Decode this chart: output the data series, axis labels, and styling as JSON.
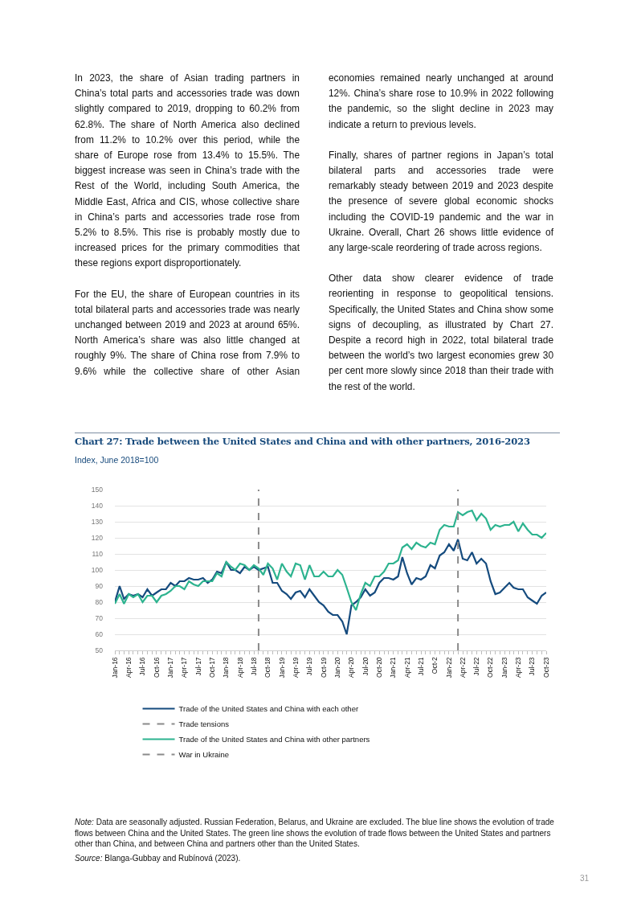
{
  "chart_data": {
    "type": "line",
    "title": "Chart 27: Trade between the United States and China and with other partners, 2016-2023",
    "subtitle": "Index, June 2018=100",
    "annotations": [
      "In 2023, the share of Asian trading partners in China’s total parts and accessories trade was down slightly compared to 2019, dropping to 60.2% from 62.8%. The share of North America also declined from 11.2% to 10.2% over this period, while the share of Europe rose from 13.4% to 15.5%. The biggest increase was seen in China’s trade with the Rest of the World, including South America, the Middle East, Africa and CIS, whose collective share in China’s parts and accessories trade rose from 5.2% to 8.5%. This rise is probably mostly due to increased prices for the primary commodities that these regions export disproportionately.",
      "For the EU, the share of European countries in its total bilateral parts and accessories trade was nearly unchanged between 2019 and 2023 at around 65%. North America’s share was also little changed at roughly 9%. The share of China rose from 7.9% to 9.6% while the collective share of other Asian economies remained nearly unchanged at around 12%. China’s share rose to 10.9% in 2022 following the pandemic, so the slight decline in 2023 may indicate a return to previous levels.",
      "Finally, shares of partner regions in Japan’s total bilateral parts and accessories trade were remarkably steady between 2019 and 2023 despite the presence of severe global economic shocks including the COVID-19 pandemic and the war in Ukraine. Overall, Chart 26 shows little evidence of any large-scale reordering of trade across regions.",
      "Other data show clearer evidence of trade reorienting in response to geopolitical tensions. Specifically, the United States and China show some signs of decoupling, as illustrated by Chart 27. Despite a record high in 2022, total bilateral trade between the world’s two largest economies grew 30 per cent more slowly since 2018 than their trade with the rest of the world.",
      "Note: Data are seasonally adjusted. Russian Federation, Belarus, and Ukraine are excluded. The blue line shows the evolution of trade flows between China and the United States. The green line shows the evolution of trade flows between the United States and partners other than China, and between China and partners other than the United States.",
      "Source: Blanga-Gubbay and Rubínová (2023).",
      "31"
    ],
    "x": [
      "2016-01",
      "2016-02",
      "2016-03",
      "2016-04",
      "2016-05",
      "2016-06",
      "2016-07",
      "2016-08",
      "2016-09",
      "2016-10",
      "2016-11",
      "2016-12",
      "2017-01",
      "2017-02",
      "2017-03",
      "2017-04",
      "2017-05",
      "2017-06",
      "2017-07",
      "2017-08",
      "2017-09",
      "2017-10",
      "2017-11",
      "2017-12",
      "2018-01",
      "2018-02",
      "2018-03",
      "2018-04",
      "2018-05",
      "2018-06",
      "2018-07",
      "2018-08",
      "2018-09",
      "2018-10",
      "2018-11",
      "2018-12",
      "2019-01",
      "2019-02",
      "2019-03",
      "2019-04",
      "2019-05",
      "2019-06",
      "2019-07",
      "2019-08",
      "2019-09",
      "2019-10",
      "2019-11",
      "2019-12",
      "2020-01",
      "2020-02",
      "2020-03",
      "2020-04",
      "2020-05",
      "2020-06",
      "2020-07",
      "2020-08",
      "2020-09",
      "2020-10",
      "2020-11",
      "2020-12",
      "2021-01",
      "2021-02",
      "2021-03",
      "2021-04",
      "2021-05",
      "2021-06",
      "2021-07",
      "2021-08",
      "2021-09",
      "2021-10",
      "2021-11",
      "2021-12",
      "2022-01",
      "2022-02",
      "2022-03",
      "2022-04",
      "2022-05",
      "2022-06",
      "2022-07",
      "2022-08",
      "2022-09",
      "2022-10",
      "2022-11",
      "2022-12",
      "2023-01",
      "2023-02",
      "2023-03",
      "2023-04",
      "2023-05",
      "2023-06",
      "2023-07",
      "2023-08",
      "2023-09",
      "2023-10"
    ],
    "series": [
      {
        "name": "Trade of the United States and China with each other",
        "color": "#154b7e",
        "values": [
          80,
          90,
          82,
          85,
          84,
          85,
          83,
          88,
          84,
          86,
          88,
          88,
          92,
          90,
          93,
          93,
          95,
          94,
          94,
          95,
          92,
          94,
          99,
          98,
          105,
          100,
          100,
          98,
          102,
          100,
          102,
          100,
          101,
          102,
          92,
          92,
          87,
          85,
          82,
          86,
          87,
          83,
          88,
          84,
          80,
          78,
          74,
          72,
          72,
          68,
          60,
          78,
          80,
          83,
          88,
          84,
          86,
          92,
          95,
          95,
          94,
          96,
          108,
          98,
          91,
          95,
          94,
          96,
          103,
          101,
          109,
          111,
          116,
          112,
          119,
          107,
          106,
          111,
          104,
          107,
          104,
          93,
          85,
          86,
          89,
          92,
          89,
          88,
          88,
          83,
          81,
          79,
          84,
          86
        ]
      },
      {
        "name": "Trade of the United States and China with other partners",
        "color": "#2db38f",
        "values": [
          79,
          85,
          79,
          85,
          83,
          85,
          80,
          84,
          84,
          80,
          84,
          85,
          87,
          90,
          90,
          88,
          93,
          91,
          90,
          93,
          93,
          93,
          98,
          96,
          105,
          102,
          100,
          104,
          103,
          100,
          103,
          101,
          97,
          104,
          101,
          94,
          104,
          99,
          96,
          104,
          103,
          94,
          103,
          96,
          96,
          99,
          96,
          96,
          100,
          97,
          89,
          80,
          75,
          85,
          92,
          90,
          96,
          96,
          99,
          104,
          104,
          106,
          114,
          116,
          113,
          117,
          115,
          114,
          117,
          116,
          125,
          128,
          127,
          127,
          136,
          134,
          136,
          137,
          131,
          135,
          132,
          125,
          128,
          127,
          128,
          128,
          130,
          124,
          129,
          125,
          122,
          122,
          120,
          123
        ]
      }
    ],
    "ref_lines": [
      {
        "axis": "x",
        "value": "2018-08",
        "label": "Trade tensions",
        "color": "#8a8a8a",
        "line_style": "dashed"
      },
      {
        "axis": "x",
        "value": "2022-03",
        "label": "War in Ukraine",
        "color": "#8a8a8a",
        "line_style": "dashed"
      }
    ],
    "xlim": [
      "2016-01",
      "2023-10"
    ],
    "xticks": [
      {
        "value": "2016-01",
        "label": "Jan-16"
      },
      {
        "value": "2016-02",
        "label": null
      },
      {
        "value": "2016-03",
        "label": null
      },
      {
        "value": "2016-04",
        "label": "Apr-16"
      },
      {
        "value": "2016-05",
        "label": null
      },
      {
        "value": "2016-06",
        "label": null
      },
      {
        "value": "2016-07",
        "label": "Jul-16"
      },
      {
        "value": "2016-08",
        "label": null
      },
      {
        "value": "2016-09",
        "label": null
      },
      {
        "value": "2016-10",
        "label": "Oct-16"
      },
      {
        "value": "2016-11",
        "label": null
      },
      {
        "value": "2016-12",
        "label": null
      },
      {
        "value": "2017-01",
        "label": "Jan-17"
      },
      {
        "value": "2017-02",
        "label": null
      },
      {
        "value": "2017-03",
        "label": null
      },
      {
        "value": "2017-04",
        "label": "Apr-17"
      },
      {
        "value": "2017-05",
        "label": null
      },
      {
        "value": "2017-06",
        "label": null
      },
      {
        "value": "2017-07",
        "label": "Jul-17"
      },
      {
        "value": "2017-08",
        "label": null
      },
      {
        "value": "2017-09",
        "label": null
      },
      {
        "value": "2017-10",
        "label": "Oct-17"
      },
      {
        "value": "2017-11",
        "label": null
      },
      {
        "value": "2017-12",
        "label": null
      },
      {
        "value": "2018-01",
        "label": "Jan-18"
      },
      {
        "value": "2018-02",
        "label": null
      },
      {
        "value": "2018-03",
        "label": null
      },
      {
        "value": "2018-04",
        "label": "Apr-18"
      },
      {
        "value": "2018-05",
        "label": null
      },
      {
        "value": "2018-06",
        "label": null
      },
      {
        "value": "2018-07",
        "label": "Jul-18"
      },
      {
        "value": "2018-08",
        "label": null
      },
      {
        "value": "2018-09",
        "label": null
      },
      {
        "value": "2018-10",
        "label": "Oct-18"
      },
      {
        "value": "2018-11",
        "label": null
      },
      {
        "value": "2018-12",
        "label": null
      },
      {
        "value": "2019-01",
        "label": "Jan-19"
      },
      {
        "value": "2019-02",
        "label": null
      },
      {
        "value": "2019-03",
        "label": null
      },
      {
        "value": "2019-04",
        "label": "Apr-19"
      },
      {
        "value": "2019-05",
        "label": null
      },
      {
        "value": "2019-06",
        "label": null
      },
      {
        "value": "2019-07",
        "label": "Jul-19"
      },
      {
        "value": "2019-08",
        "label": null
      },
      {
        "value": "2019-09",
        "label": null
      },
      {
        "value": "2019-10",
        "label": "Oct-19"
      },
      {
        "value": "2019-11",
        "label": null
      },
      {
        "value": "2019-12",
        "label": null
      },
      {
        "value": "2020-01",
        "label": "Jan-20"
      },
      {
        "value": "2020-02",
        "label": null
      },
      {
        "value": "2020-03",
        "label": null
      },
      {
        "value": "2020-04",
        "label": "Apr-20"
      },
      {
        "value": "2020-05",
        "label": null
      },
      {
        "value": "2020-06",
        "label": null
      },
      {
        "value": "2020-07",
        "label": "Jul-20"
      },
      {
        "value": "2020-08",
        "label": null
      },
      {
        "value": "2020-09",
        "label": null
      },
      {
        "value": "2020-10",
        "label": "Oct-20"
      },
      {
        "value": "2020-11",
        "label": null
      },
      {
        "value": "2020-12",
        "label": null
      },
      {
        "value": "2021-01",
        "label": "Jan-21"
      },
      {
        "value": "2021-02",
        "label": null
      },
      {
        "value": "2021-03",
        "label": null
      },
      {
        "value": "2021-04",
        "label": "Apr-21"
      },
      {
        "value": "2021-05",
        "label": null
      },
      {
        "value": "2021-06",
        "label": null
      },
      {
        "value": "2021-07",
        "label": "Jul-21"
      },
      {
        "value": "2021-08",
        "label": null
      },
      {
        "value": "2021-09",
        "label": null
      },
      {
        "value": "2021-10",
        "label": "Oct-2"
      },
      {
        "value": "2021-11",
        "label": null
      },
      {
        "value": "2021-12",
        "label": null
      },
      {
        "value": "2022-01",
        "label": "Jan-22"
      },
      {
        "value": "2022-02",
        "label": null
      },
      {
        "value": "2022-03",
        "label": null
      },
      {
        "value": "2022-04",
        "label": "Apr-22"
      },
      {
        "value": "2022-05",
        "label": null
      },
      {
        "value": "2022-06",
        "label": null
      },
      {
        "value": "2022-07",
        "label": "Jul-22"
      },
      {
        "value": "2022-08",
        "label": null
      },
      {
        "value": "2022-09",
        "label": null
      },
      {
        "value": "2022-10",
        "label": "Oct-22"
      },
      {
        "value": "2022-11",
        "label": null
      },
      {
        "value": "2022-12",
        "label": null
      },
      {
        "value": "2023-01",
        "label": "Jan-23"
      },
      {
        "value": "2023-02",
        "label": null
      },
      {
        "value": "2023-03",
        "label": null
      },
      {
        "value": "2023-04",
        "label": "Apr-23"
      },
      {
        "value": "2023-05",
        "label": null
      },
      {
        "value": "2023-06",
        "label": null
      },
      {
        "value": "2023-07",
        "label": "Jul-23"
      },
      {
        "value": "2023-08",
        "label": null
      },
      {
        "value": "2023-09",
        "label": null
      },
      {
        "value": "2023-10",
        "label": "Oct-23"
      }
    ],
    "ylim": [
      50,
      150
    ],
    "yticks": [
      50,
      60,
      70,
      80,
      90,
      100,
      110,
      120,
      130,
      140,
      150
    ],
    "grid": "y",
    "legend": "bottom",
    "marker": "none",
    "line_style": "solid"
  }
}
